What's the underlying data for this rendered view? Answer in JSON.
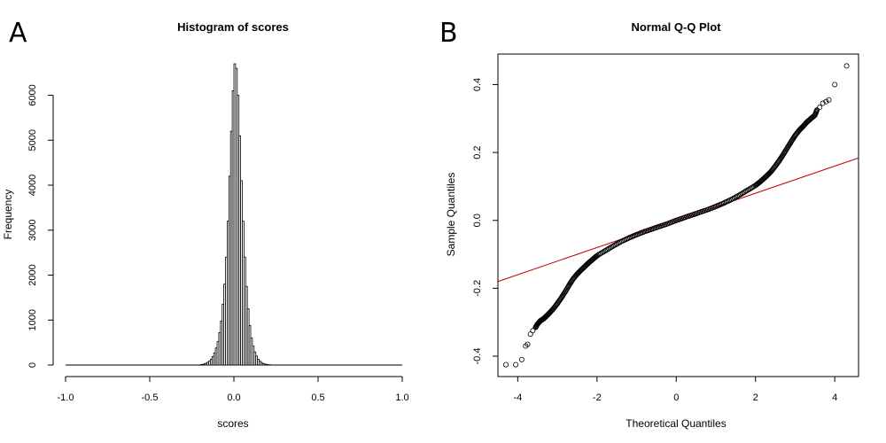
{
  "panels": {
    "a": {
      "letter": "A"
    },
    "b": {
      "letter": "B"
    }
  },
  "chart_data": [
    {
      "type": "bar",
      "title": "Histogram of scores",
      "xlabel": "scores",
      "ylabel": "Frequency",
      "xlim": [
        -1.0,
        1.0
      ],
      "ylim": [
        0,
        6700
      ],
      "xticks": [
        "-1.0",
        "-0.5",
        "0.0",
        "0.5",
        "1.0"
      ],
      "yticks": [
        "0",
        "1000",
        "2000",
        "3000",
        "4000",
        "5000",
        "6000"
      ],
      "bin_width": 0.01,
      "bins": [
        {
          "x": -0.2,
          "count": 10
        },
        {
          "x": -0.19,
          "count": 15
        },
        {
          "x": -0.18,
          "count": 25
        },
        {
          "x": -0.17,
          "count": 40
        },
        {
          "x": -0.16,
          "count": 60
        },
        {
          "x": -0.15,
          "count": 90
        },
        {
          "x": -0.14,
          "count": 130
        },
        {
          "x": -0.13,
          "count": 190
        },
        {
          "x": -0.12,
          "count": 270
        },
        {
          "x": -0.11,
          "count": 380
        },
        {
          "x": -0.1,
          "count": 520
        },
        {
          "x": -0.09,
          "count": 720
        },
        {
          "x": -0.08,
          "count": 980
        },
        {
          "x": -0.07,
          "count": 1350
        },
        {
          "x": -0.06,
          "count": 1800
        },
        {
          "x": -0.05,
          "count": 2400
        },
        {
          "x": -0.04,
          "count": 3200
        },
        {
          "x": -0.03,
          "count": 4200
        },
        {
          "x": -0.02,
          "count": 5200
        },
        {
          "x": -0.01,
          "count": 6100
        },
        {
          "x": 0.0,
          "count": 6700
        },
        {
          "x": 0.01,
          "count": 6600
        },
        {
          "x": 0.02,
          "count": 6000
        },
        {
          "x": 0.03,
          "count": 5100
        },
        {
          "x": 0.04,
          "count": 4100
        },
        {
          "x": 0.05,
          "count": 3200
        },
        {
          "x": 0.06,
          "count": 2400
        },
        {
          "x": 0.07,
          "count": 1750
        },
        {
          "x": 0.08,
          "count": 1250
        },
        {
          "x": 0.09,
          "count": 880
        },
        {
          "x": 0.1,
          "count": 600
        },
        {
          "x": 0.11,
          "count": 420
        },
        {
          "x": 0.12,
          "count": 290
        },
        {
          "x": 0.13,
          "count": 200
        },
        {
          "x": 0.14,
          "count": 130
        },
        {
          "x": 0.15,
          "count": 85
        },
        {
          "x": 0.16,
          "count": 55
        },
        {
          "x": 0.17,
          "count": 35
        },
        {
          "x": 0.18,
          "count": 22
        },
        {
          "x": 0.19,
          "count": 14
        },
        {
          "x": 0.2,
          "count": 9
        },
        {
          "x": 0.21,
          "count": 5
        }
      ],
      "grid": false
    },
    {
      "type": "scatter",
      "title": "Normal Q-Q Plot",
      "xlabel": "Theoretical Quantiles",
      "ylabel": "Sample Quantiles",
      "xlim": [
        -4.5,
        4.6
      ],
      "ylim": [
        -0.46,
        0.49
      ],
      "xticks": [
        "-4",
        "-2",
        "0",
        "2",
        "4"
      ],
      "yticks": [
        "-0.4",
        "-0.2",
        "0.0",
        "0.2",
        "0.4"
      ],
      "points": [
        [
          -4.3,
          -0.425
        ],
        [
          -4.05,
          -0.425
        ],
        [
          -3.9,
          -0.41
        ],
        [
          -3.8,
          -0.37
        ],
        [
          -3.75,
          -0.365
        ],
        [
          -3.68,
          -0.335
        ],
        [
          -3.62,
          -0.325
        ],
        [
          -3.55,
          -0.315
        ],
        [
          -3.5,
          -0.305
        ],
        [
          -3.42,
          -0.295
        ],
        [
          -3.35,
          -0.29
        ],
        [
          -3.28,
          -0.282
        ],
        [
          -3.2,
          -0.273
        ],
        [
          -3.1,
          -0.26
        ],
        [
          -3.0,
          -0.245
        ],
        [
          -2.9,
          -0.228
        ],
        [
          -2.8,
          -0.21
        ],
        [
          -2.7,
          -0.19
        ],
        [
          -2.6,
          -0.172
        ],
        [
          -2.5,
          -0.158
        ],
        [
          -2.4,
          -0.146
        ],
        [
          -2.3,
          -0.135
        ],
        [
          -2.2,
          -0.124
        ],
        [
          -2.1,
          -0.114
        ],
        [
          -2.0,
          -0.104
        ],
        [
          -1.8,
          -0.09
        ],
        [
          -1.6,
          -0.076
        ],
        [
          -1.4,
          -0.063
        ],
        [
          -1.2,
          -0.052
        ],
        [
          -1.0,
          -0.042
        ],
        [
          -0.8,
          -0.033
        ],
        [
          -0.6,
          -0.025
        ],
        [
          -0.4,
          -0.017
        ],
        [
          -0.2,
          -0.009
        ],
        [
          0.0,
          0.0
        ],
        [
          0.2,
          0.008
        ],
        [
          0.4,
          0.016
        ],
        [
          0.6,
          0.024
        ],
        [
          0.8,
          0.032
        ],
        [
          1.0,
          0.041
        ],
        [
          1.2,
          0.051
        ],
        [
          1.4,
          0.062
        ],
        [
          1.6,
          0.075
        ],
        [
          1.8,
          0.089
        ],
        [
          2.0,
          0.103
        ],
        [
          2.1,
          0.112
        ],
        [
          2.2,
          0.122
        ],
        [
          2.3,
          0.133
        ],
        [
          2.4,
          0.145
        ],
        [
          2.5,
          0.16
        ],
        [
          2.6,
          0.176
        ],
        [
          2.7,
          0.194
        ],
        [
          2.8,
          0.213
        ],
        [
          2.9,
          0.232
        ],
        [
          3.0,
          0.25
        ],
        [
          3.1,
          0.265
        ],
        [
          3.2,
          0.277
        ],
        [
          3.3,
          0.29
        ],
        [
          3.4,
          0.3
        ],
        [
          3.5,
          0.31
        ],
        [
          3.55,
          0.325
        ],
        [
          3.62,
          0.333
        ],
        [
          3.7,
          0.345
        ],
        [
          3.78,
          0.35
        ],
        [
          3.85,
          0.355
        ],
        [
          4.0,
          0.4
        ],
        [
          4.3,
          0.455
        ]
      ],
      "reference_line": {
        "intercept": 0.0,
        "slope": 0.04
      }
    }
  ]
}
